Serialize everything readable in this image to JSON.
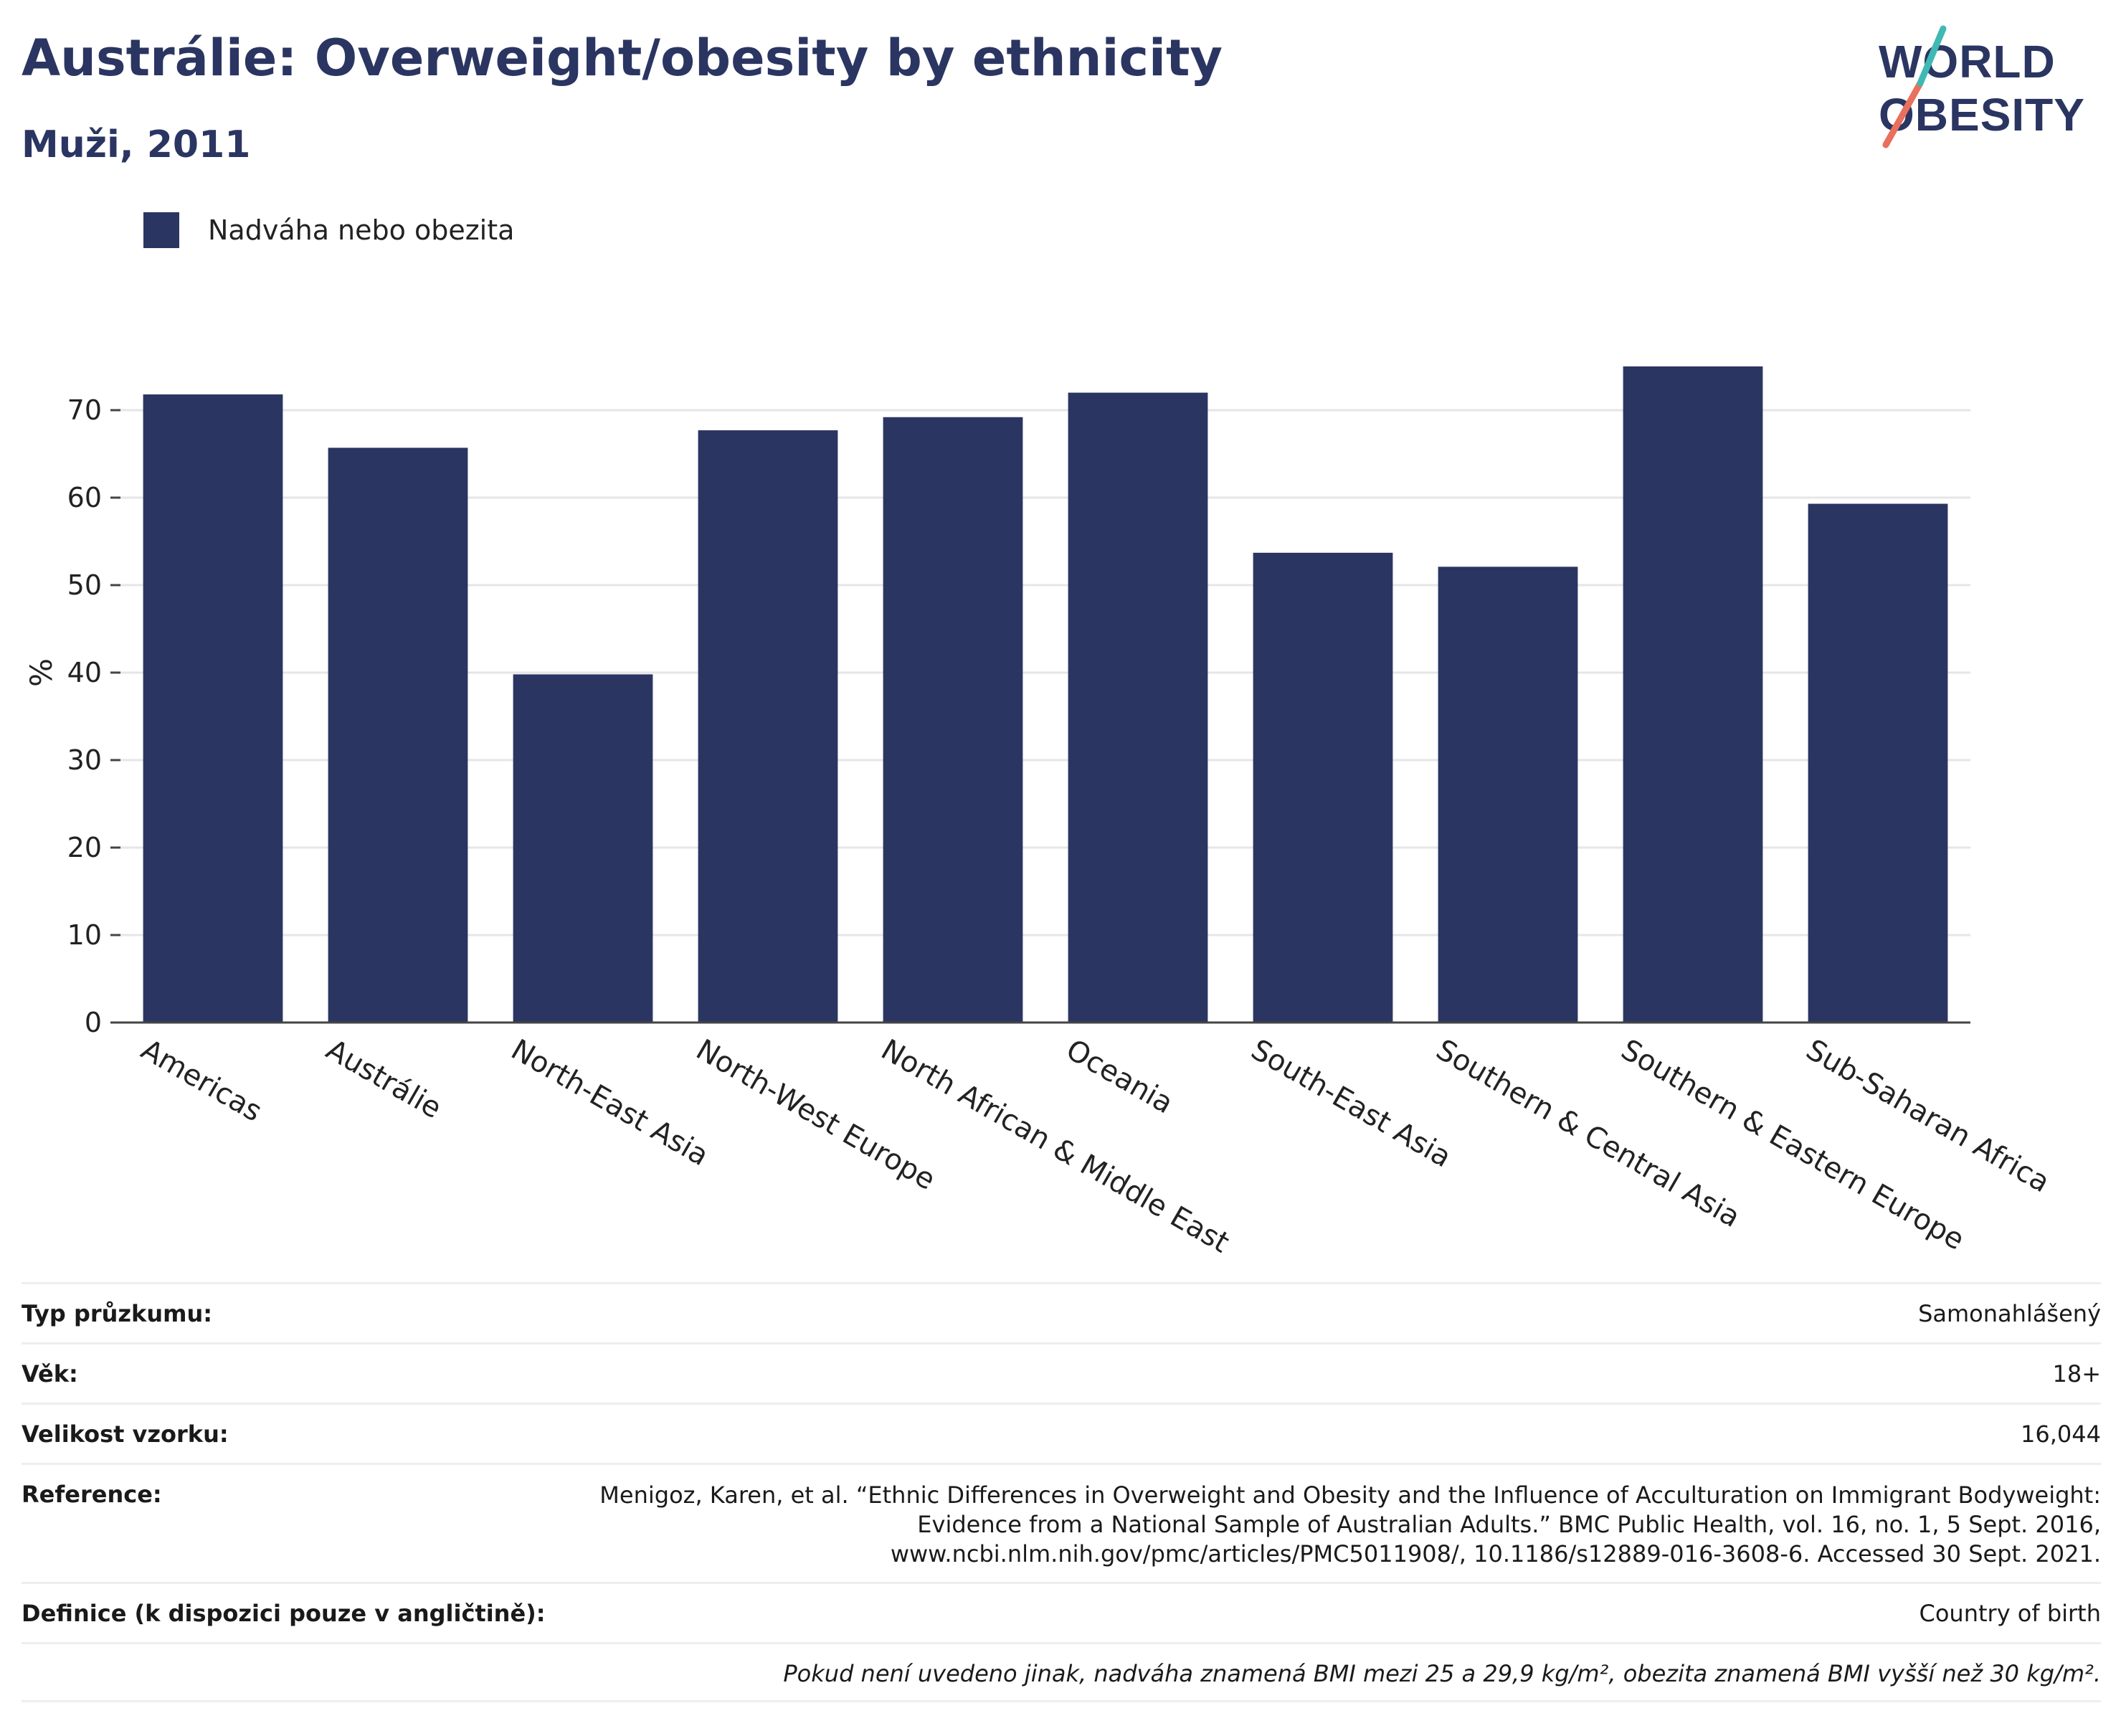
{
  "header": {
    "title": "Austrálie: Overweight/obesity by ethnicity",
    "subtitle": "Muži, 2011"
  },
  "logo": {
    "line1": "WORLD",
    "line2": "OBESITY"
  },
  "legend": {
    "label": "Nadváha nebo obezita",
    "color": "#2b3562"
  },
  "chart_data": {
    "type": "bar",
    "categories": [
      "Americas",
      "Austrálie",
      "North-East Asia",
      "North-West Europe",
      "North African & Middle East",
      "Oceania",
      "South-East Asia",
      "Southern & Central Asia",
      "Southern & Eastern Europe",
      "Sub-Saharan Africa"
    ],
    "series": [
      {
        "name": "Nadváha nebo obezita",
        "values": [
          71.8,
          65.7,
          39.8,
          67.7,
          69.2,
          72.0,
          53.7,
          52.1,
          75.0,
          59.3
        ]
      }
    ],
    "ylabel": "%",
    "xlabel": "",
    "yticks": [
      0,
      10,
      20,
      30,
      40,
      50,
      60,
      70
    ],
    "ylim": [
      0,
      78
    ],
    "grid": true,
    "bar_color": "#2b3562"
  },
  "info": {
    "rows": [
      {
        "key": "Typ průzkumu:",
        "value": "Samonahlášený"
      },
      {
        "key": "Věk:",
        "value": "18+"
      },
      {
        "key": "Velikost vzorku:",
        "value": "16,044"
      },
      {
        "key": "Reference:",
        "value_lines": [
          "Menigoz, Karen, et al. “Ethnic Differences in Overweight and Obesity and the Influence of Acculturation on Immigrant Bodyweight:",
          "Evidence from a National Sample of Australian Adults.” BMC Public Health, vol. 16, no. 1, 5 Sept. 2016,",
          "www.ncbi.nlm.nih.gov/pmc/articles/PMC5011908/, 10.1186/s12889-016-3608-6. Accessed 30 Sept. 2021."
        ]
      },
      {
        "key": "Definice (k dispozici pouze v angličtině):",
        "value": "Country of birth"
      }
    ],
    "footnote": "Pokud není uvedeno jinak, nadváha znamená BMI mezi 25 a 29,9 kg/m², obezita znamená BMI vyšší než 30 kg/m²."
  }
}
